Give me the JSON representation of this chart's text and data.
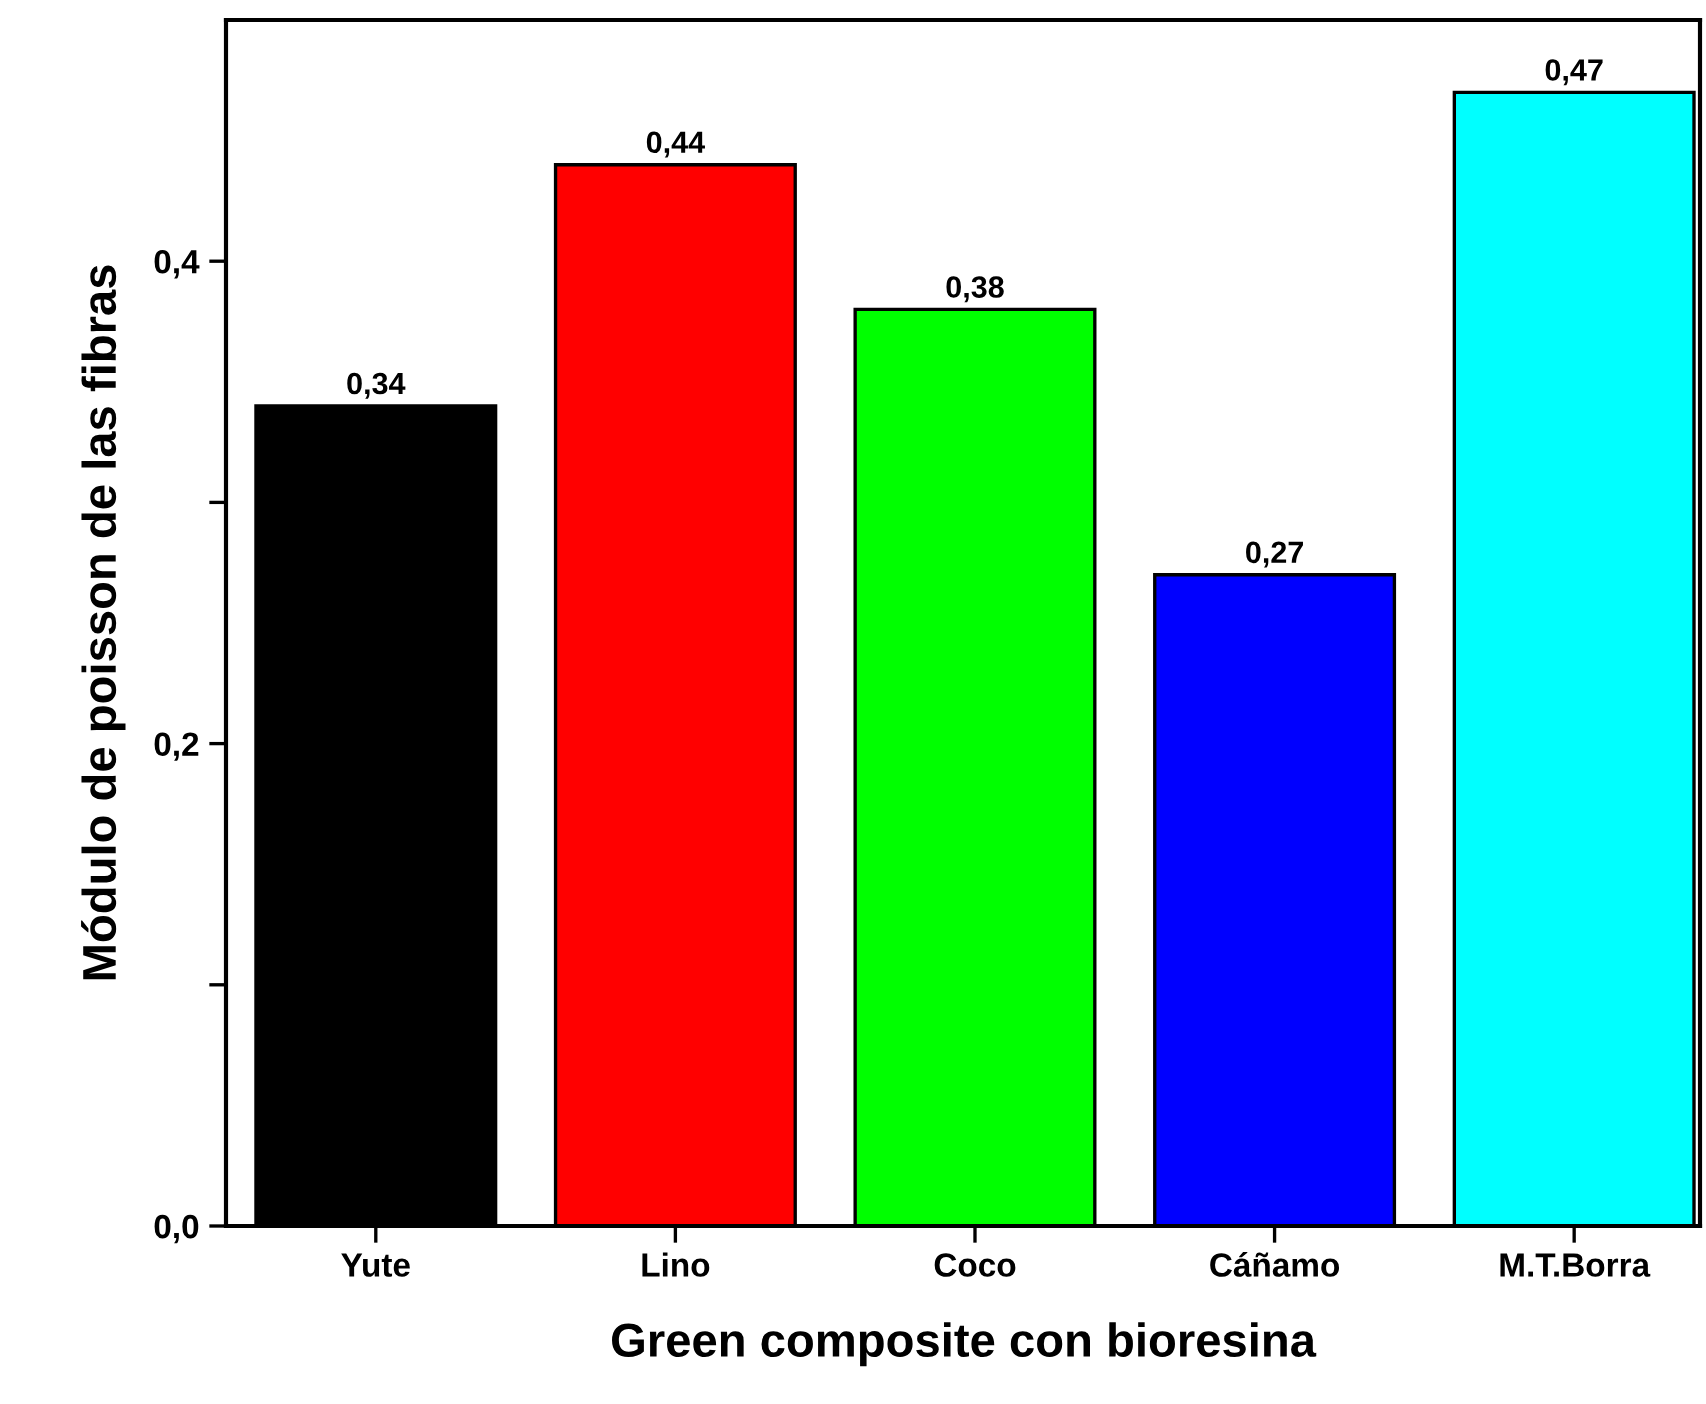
{
  "chart_data": {
    "type": "bar",
    "xlabel": "Green composite con bioresina",
    "ylabel": "Módulo de poisson de las fibras",
    "categories": [
      "Yute",
      "Lino",
      "Coco",
      "Cáñamo",
      "M.T.Borra"
    ],
    "values": [
      0.34,
      0.44,
      0.38,
      0.27,
      0.47
    ],
    "colors": [
      "#000000",
      "#ff0000",
      "#00ff00",
      "#0000ff",
      "#00ffff"
    ],
    "value_labels": [
      "0,34",
      "0,44",
      "0,38",
      "0,27",
      "0,47"
    ],
    "ylim": [
      0,
      0.5
    ],
    "yticks": [
      {
        "value": 0,
        "label": "0,0"
      },
      {
        "value": 0.1,
        "label": null
      },
      {
        "value": 0.2,
        "label": "0,2"
      },
      {
        "value": 0.3,
        "label": null
      },
      {
        "value": 0.4,
        "label": "0,4"
      }
    ],
    "grid": false,
    "legend": false
  }
}
